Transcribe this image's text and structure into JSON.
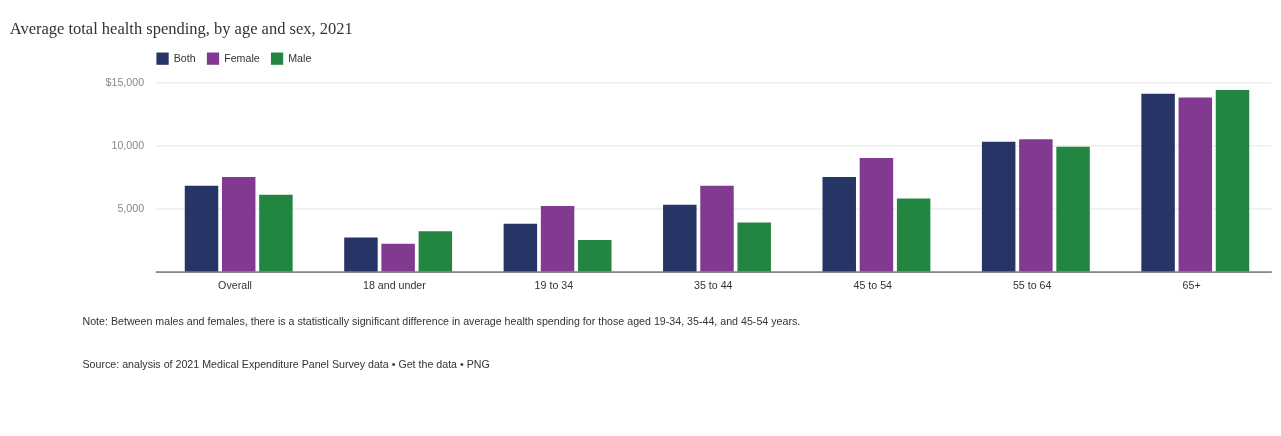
{
  "chart_data": {
    "type": "bar",
    "title": "Average total health spending, by age and sex, 2021",
    "categories": [
      "Overall",
      "18 and under",
      "19 to 34",
      "35 to 44",
      "45 to 54",
      "55 to 64",
      "65+"
    ],
    "series": [
      {
        "name": "Both",
        "color": "#263466",
        "values": [
          6800,
          2700,
          3800,
          5300,
          7500,
          10300,
          14100
        ]
      },
      {
        "name": "Female",
        "color": "#823a91",
        "values": [
          7500,
          2200,
          5200,
          6800,
          9000,
          10500,
          13800
        ]
      },
      {
        "name": "Male",
        "color": "#228540",
        "values": [
          6100,
          3200,
          2500,
          3900,
          5800,
          9900,
          14400
        ]
      }
    ],
    "ylim": [
      0,
      15000
    ],
    "yticks": [
      {
        "value": 0,
        "label": null
      },
      {
        "value": 5000,
        "label": "5,000"
      },
      {
        "value": 10000,
        "label": "10,000"
      },
      {
        "value": 15000,
        "label": "$15,000"
      }
    ],
    "grid": "y",
    "legend": "top left",
    "annotations": [
      "Note: Between males and females, there is a statistically significant difference in average health spending for those aged 19-34, 35-44, and 45-54 years.",
      "Source: analysis of 2021 Medical Expenditure Panel Survey data • Get the data • PNG"
    ]
  }
}
